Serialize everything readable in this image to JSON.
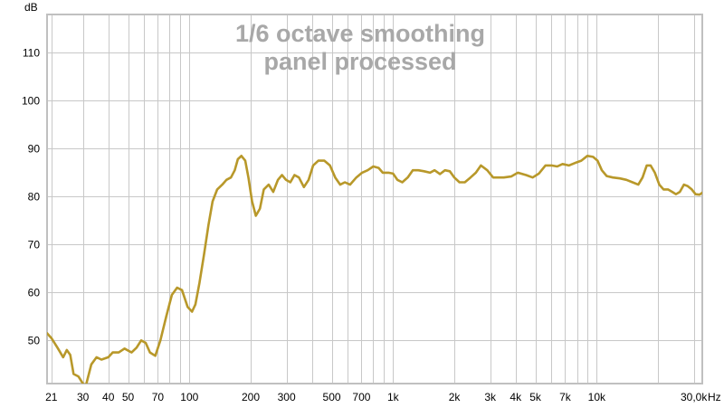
{
  "chart_data": {
    "type": "line",
    "title_lines": [
      "1/6 octave smoothing",
      "panel processed"
    ],
    "ylabel": "dB",
    "xlabel": "Hz",
    "x_scale": "log",
    "xlim": [
      20,
      33000
    ],
    "ylim": [
      41,
      118
    ],
    "grid": true,
    "y_ticks": [
      {
        "value": 50,
        "label": "50"
      },
      {
        "value": 60,
        "label": "60"
      },
      {
        "value": 70,
        "label": "70"
      },
      {
        "value": 80,
        "label": "80"
      },
      {
        "value": 90,
        "label": "90"
      },
      {
        "value": 100,
        "label": "100"
      },
      {
        "value": 110,
        "label": "110"
      }
    ],
    "x_ticks": [
      {
        "value": 21,
        "label": "21"
      },
      {
        "value": 30,
        "label": "30"
      },
      {
        "value": 40,
        "label": "40"
      },
      {
        "value": 50,
        "label": "50"
      },
      {
        "value": 70,
        "label": "70"
      },
      {
        "value": 100,
        "label": "100"
      },
      {
        "value": 200,
        "label": "200"
      },
      {
        "value": 300,
        "label": "300"
      },
      {
        "value": 500,
        "label": "500"
      },
      {
        "value": 700,
        "label": "700"
      },
      {
        "value": 1000,
        "label": "1k"
      },
      {
        "value": 2000,
        "label": "2k"
      },
      {
        "value": 3000,
        "label": "3k"
      },
      {
        "value": 4000,
        "label": "4k"
      },
      {
        "value": 5000,
        "label": "5k"
      },
      {
        "value": 7000,
        "label": "7k"
      },
      {
        "value": 10000,
        "label": "10k"
      },
      {
        "value": 30000,
        "label": "30,0k"
      }
    ],
    "minor_gridlines_x": [
      20,
      60,
      80,
      90,
      400,
      600,
      800,
      900,
      6000,
      8000,
      9000,
      20000
    ],
    "colors": {
      "line": "#b8982a",
      "grid": "#c8c8c8",
      "title": "#a8a8a8",
      "frame": "#c0c0c0"
    },
    "series": [
      {
        "points": [
          [
            20,
            51.5
          ],
          [
            21,
            50.5
          ],
          [
            22.5,
            48.5
          ],
          [
            24,
            46.5
          ],
          [
            25,
            48
          ],
          [
            26,
            47
          ],
          [
            27,
            43
          ],
          [
            28.5,
            42.5
          ],
          [
            30,
            41
          ],
          [
            31,
            40.5
          ],
          [
            33,
            45
          ],
          [
            35,
            46.5
          ],
          [
            37,
            46
          ],
          [
            40,
            46.5
          ],
          [
            42,
            47.5
          ],
          [
            45,
            47.5
          ],
          [
            48,
            48.3
          ],
          [
            52,
            47.5
          ],
          [
            55,
            48.5
          ],
          [
            58,
            50
          ],
          [
            61,
            49.5
          ],
          [
            64,
            47.5
          ],
          [
            68,
            46.8
          ],
          [
            72,
            50
          ],
          [
            77,
            55
          ],
          [
            82,
            59.5
          ],
          [
            87,
            61
          ],
          [
            92,
            60.5
          ],
          [
            98,
            57
          ],
          [
            103,
            56
          ],
          [
            107,
            57.5
          ],
          [
            112,
            62
          ],
          [
            118,
            68
          ],
          [
            124,
            74
          ],
          [
            130,
            79
          ],
          [
            137,
            81.5
          ],
          [
            145,
            82.5
          ],
          [
            152,
            83.5
          ],
          [
            160,
            84
          ],
          [
            167,
            85.5
          ],
          [
            173,
            87.8
          ],
          [
            180,
            88.5
          ],
          [
            188,
            87.5
          ],
          [
            195,
            84
          ],
          [
            203,
            79
          ],
          [
            212,
            76
          ],
          [
            222,
            77.5
          ],
          [
            232,
            81.5
          ],
          [
            245,
            82.5
          ],
          [
            258,
            81
          ],
          [
            272,
            83.5
          ],
          [
            285,
            84.5
          ],
          [
            298,
            83.5
          ],
          [
            313,
            83
          ],
          [
            328,
            84.5
          ],
          [
            345,
            84
          ],
          [
            365,
            82
          ],
          [
            385,
            83.5
          ],
          [
            405,
            86.5
          ],
          [
            430,
            87.5
          ],
          [
            460,
            87.5
          ],
          [
            490,
            86.5
          ],
          [
            520,
            84
          ],
          [
            550,
            82.5
          ],
          [
            580,
            83
          ],
          [
            615,
            82.5
          ],
          [
            660,
            84
          ],
          [
            705,
            85
          ],
          [
            750,
            85.5
          ],
          [
            800,
            86.3
          ],
          [
            850,
            86
          ],
          [
            890,
            85
          ],
          [
            950,
            85
          ],
          [
            1000,
            84.8
          ],
          [
            1050,
            83.5
          ],
          [
            1110,
            83
          ],
          [
            1180,
            84
          ],
          [
            1250,
            85.5
          ],
          [
            1330,
            85.5
          ],
          [
            1420,
            85.3
          ],
          [
            1520,
            85
          ],
          [
            1600,
            85.5
          ],
          [
            1700,
            84.7
          ],
          [
            1800,
            85.5
          ],
          [
            1900,
            85.3
          ],
          [
            2000,
            84
          ],
          [
            2120,
            83
          ],
          [
            2250,
            83
          ],
          [
            2400,
            84
          ],
          [
            2550,
            85
          ],
          [
            2700,
            86.5
          ],
          [
            2900,
            85.5
          ],
          [
            3100,
            84
          ],
          [
            3300,
            84
          ],
          [
            3500,
            84
          ],
          [
            3800,
            84.2
          ],
          [
            4100,
            85
          ],
          [
            4500,
            84.5
          ],
          [
            4850,
            84
          ],
          [
            5200,
            84.8
          ],
          [
            5600,
            86.5
          ],
          [
            6000,
            86.5
          ],
          [
            6400,
            86.3
          ],
          [
            6800,
            86.8
          ],
          [
            7300,
            86.5
          ],
          [
            7800,
            87
          ],
          [
            8400,
            87.5
          ],
          [
            9000,
            88.5
          ],
          [
            9600,
            88.3
          ],
          [
            10100,
            87.5
          ],
          [
            10600,
            85.5
          ],
          [
            11200,
            84.3
          ],
          [
            12000,
            84
          ],
          [
            13000,
            83.8
          ],
          [
            14000,
            83.5
          ],
          [
            15000,
            83
          ],
          [
            16000,
            82.5
          ],
          [
            16800,
            84
          ],
          [
            17600,
            86.5
          ],
          [
            18400,
            86.5
          ],
          [
            19300,
            85
          ],
          [
            20300,
            82.5
          ],
          [
            21300,
            81.5
          ],
          [
            22400,
            81.5
          ],
          [
            23500,
            81
          ],
          [
            24500,
            80.5
          ],
          [
            25600,
            81
          ],
          [
            26800,
            82.5
          ],
          [
            28000,
            82.2
          ],
          [
            29300,
            81.5
          ],
          [
            30600,
            80.5
          ],
          [
            32000,
            80.4
          ],
          [
            33000,
            80.8
          ],
          [
            35000,
            81.5
          ]
        ]
      }
    ]
  }
}
